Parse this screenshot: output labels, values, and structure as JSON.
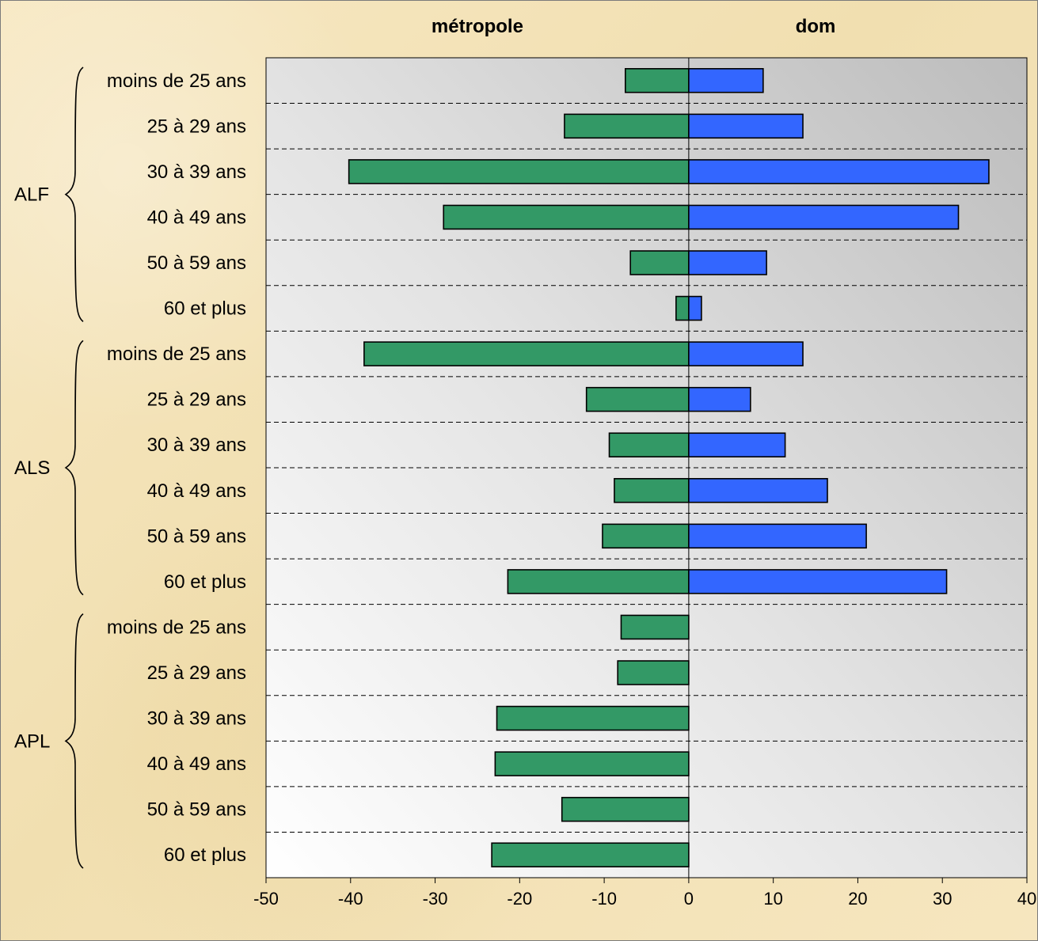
{
  "chart_data": {
    "type": "bar",
    "title": "",
    "subtitle": "",
    "xlabel": "",
    "ylabel": "",
    "xlim": [
      -50,
      40
    ],
    "x_ticks": [
      "-50",
      "-40",
      "-30",
      "-20",
      "-10",
      "0",
      "10",
      "20",
      "30",
      "40"
    ],
    "column_labels": {
      "left": "métropole",
      "right": "dom"
    },
    "groups": [
      {
        "label": "ALF",
        "categories": [
          "moins de 25 ans",
          "25 à 29 ans",
          "30 à 39 ans",
          "40 à 49 ans",
          "50 à 59 ans",
          "60 et plus"
        ]
      },
      {
        "label": "ALS",
        "categories": [
          "moins de 25 ans",
          "25 à 29 ans",
          "30 à 39 ans",
          "40 à 49 ans",
          "50 à 59 ans",
          "60 et plus"
        ]
      },
      {
        "label": "APL",
        "categories": [
          "moins de 25 ans",
          "25 à 29 ans",
          "30 à 39 ans",
          "40 à 49 ans",
          "50 à 59 ans",
          "60 et plus"
        ]
      }
    ],
    "series": [
      {
        "name": "métropole",
        "color": "#339966",
        "values": [
          -7.5,
          -14.7,
          -40.2,
          -29.0,
          -6.9,
          -1.5,
          -38.4,
          -12.1,
          -9.4,
          -8.8,
          -10.2,
          -21.4,
          -8.0,
          -8.4,
          -22.7,
          -22.9,
          -15.0,
          -23.3
        ]
      },
      {
        "name": "dom",
        "color": "#3366ff",
        "values": [
          8.8,
          13.5,
          35.5,
          31.9,
          9.2,
          1.5,
          13.5,
          7.3,
          11.4,
          16.4,
          21.0,
          30.5,
          0,
          0,
          0,
          0,
          0,
          0
        ]
      }
    ],
    "grid": "horizontal-dashed",
    "colors": {
      "negative_bar": "#339966",
      "positive_bar": "#3366ff",
      "plot_left": "#ffffff",
      "plot_right": "#bdbdbd",
      "partial_heading": "#e02020"
    }
  },
  "partial_heading_text": "",
  "icons": {
    "group_brace": "curly-brace"
  }
}
